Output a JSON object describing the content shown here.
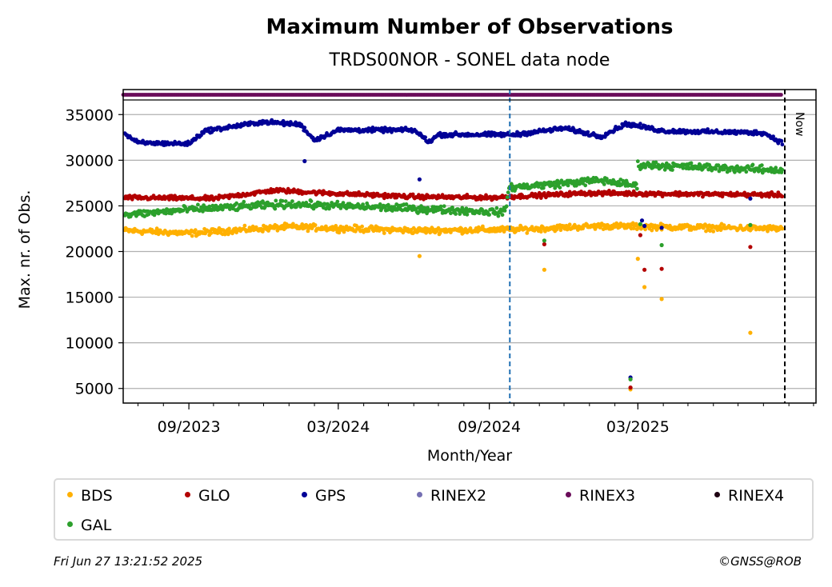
{
  "chart_data": {
    "type": "scatter",
    "title": "Maximum Number of Observations",
    "subtitle": "TRDS00NOR - SONEL data node",
    "xlabel": "Month/Year",
    "ylabel": "Max. nr. of Obs.",
    "x_range": [
      "2023-06-13",
      "2025-10-04"
    ],
    "ylim": [
      3400,
      36600
    ],
    "y_ticks": [
      5000,
      10000,
      15000,
      20000,
      25000,
      30000,
      35000
    ],
    "x_ticks": [
      {
        "date": "2023-09-01",
        "label": "09/2023"
      },
      {
        "date": "2024-03-01",
        "label": "03/2024"
      },
      {
        "date": "2024-09-01",
        "label": "09/2024"
      },
      {
        "date": "2025-03-01",
        "label": "03/2025"
      }
    ],
    "grid": "horizontal",
    "now_date": "2025-08-27",
    "now_label": "Now",
    "marker_date": "2024-09-26",
    "rinex_band": {
      "series": "RINEX3",
      "start": "2023-06-13",
      "end": "2025-08-24"
    },
    "series": [
      {
        "name": "BDS",
        "color": "#ffb000",
        "base": [
          [
            "2023-06-15",
            22300
          ],
          [
            "2023-09-01",
            22000
          ],
          [
            "2024-01-01",
            22700
          ],
          [
            "2024-06-01",
            22300
          ],
          [
            "2024-10-01",
            22400
          ],
          [
            "2025-01-15",
            22800
          ],
          [
            "2025-08-24",
            22500
          ]
        ],
        "jitter": 500,
        "outliers": [
          [
            "2024-06-08",
            19500
          ],
          [
            "2024-11-07",
            18000
          ],
          [
            "2025-02-20",
            4900
          ],
          [
            "2025-03-01",
            19200
          ],
          [
            "2025-03-09",
            16100
          ],
          [
            "2025-03-30",
            14800
          ],
          [
            "2025-07-16",
            11100
          ]
        ]
      },
      {
        "name": "GLO",
        "color": "#b30000",
        "base": [
          [
            "2023-06-15",
            25900
          ],
          [
            "2023-10-01",
            25800
          ],
          [
            "2023-12-15",
            26700
          ],
          [
            "2024-02-15",
            26400
          ],
          [
            "2024-06-01",
            26000
          ],
          [
            "2024-09-01",
            25900
          ],
          [
            "2025-01-01",
            26400
          ],
          [
            "2025-08-24",
            26200
          ]
        ],
        "jitter": 350,
        "outliers": [
          [
            "2024-11-07",
            20800
          ],
          [
            "2025-02-20",
            5100
          ],
          [
            "2025-03-04",
            21800
          ],
          [
            "2025-03-09",
            18000
          ],
          [
            "2025-03-30",
            18100
          ],
          [
            "2025-07-16",
            20500
          ]
        ]
      },
      {
        "name": "GPS",
        "color": "#000096",
        "base": [
          [
            "2023-06-15",
            32900
          ],
          [
            "2023-07-01",
            31900
          ],
          [
            "2023-09-01",
            31800
          ],
          [
            "2023-09-20",
            33200
          ],
          [
            "2023-12-01",
            34200
          ],
          [
            "2024-01-15",
            33900
          ],
          [
            "2024-02-01",
            32200
          ],
          [
            "2024-03-01",
            33300
          ],
          [
            "2024-06-01",
            33300
          ],
          [
            "2024-06-20",
            32000
          ],
          [
            "2024-07-01",
            32800
          ],
          [
            "2024-10-01",
            32800
          ],
          [
            "2024-12-01",
            33500
          ],
          [
            "2025-01-15",
            32600
          ],
          [
            "2025-02-15",
            34000
          ],
          [
            "2025-04-01",
            33200
          ],
          [
            "2025-08-01",
            33000
          ],
          [
            "2025-08-24",
            31900
          ]
        ],
        "jitter": 350,
        "outliers": [
          [
            "2024-06-08",
            27900
          ],
          [
            "2024-01-20",
            29900
          ],
          [
            "2025-02-20",
            6200
          ],
          [
            "2025-03-06",
            23400
          ],
          [
            "2025-03-09",
            22800
          ],
          [
            "2025-03-30",
            22600
          ],
          [
            "2025-07-16",
            25800
          ]
        ]
      },
      {
        "name": "GAL",
        "color": "#2ca02c",
        "base": [
          [
            "2023-06-15",
            24000
          ],
          [
            "2023-09-01",
            24600
          ],
          [
            "2024-01-01",
            25200
          ],
          [
            "2024-06-01",
            24700
          ],
          [
            "2024-09-20",
            24300
          ],
          [
            "2024-09-25",
            27000
          ],
          [
            "2025-01-15",
            27800
          ],
          [
            "2025-02-28",
            27200
          ],
          [
            "2025-03-01",
            29500
          ],
          [
            "2025-08-24",
            28900
          ]
        ],
        "jitter": 600,
        "outliers": [
          [
            "2024-06-08",
            24800
          ],
          [
            "2024-11-07",
            21200
          ],
          [
            "2025-02-20",
            6000
          ],
          [
            "2025-03-04",
            23000
          ],
          [
            "2025-03-30",
            20700
          ],
          [
            "2025-07-16",
            22900
          ]
        ]
      }
    ]
  },
  "legend": [
    {
      "label": "BDS",
      "color": "#ffb000"
    },
    {
      "label": "GLO",
      "color": "#b30000"
    },
    {
      "label": "GPS",
      "color": "#000096"
    },
    {
      "label": "RINEX2",
      "color": "#7570b3"
    },
    {
      "label": "RINEX3",
      "color": "#6a0d5a"
    },
    {
      "label": "RINEX4",
      "color": "#1e0012"
    },
    {
      "label": "GAL",
      "color": "#2ca02c"
    }
  ],
  "footer": {
    "timestamp": "Fri Jun 27 13:21:52 2025",
    "credit": "©GNSS@ROB"
  }
}
